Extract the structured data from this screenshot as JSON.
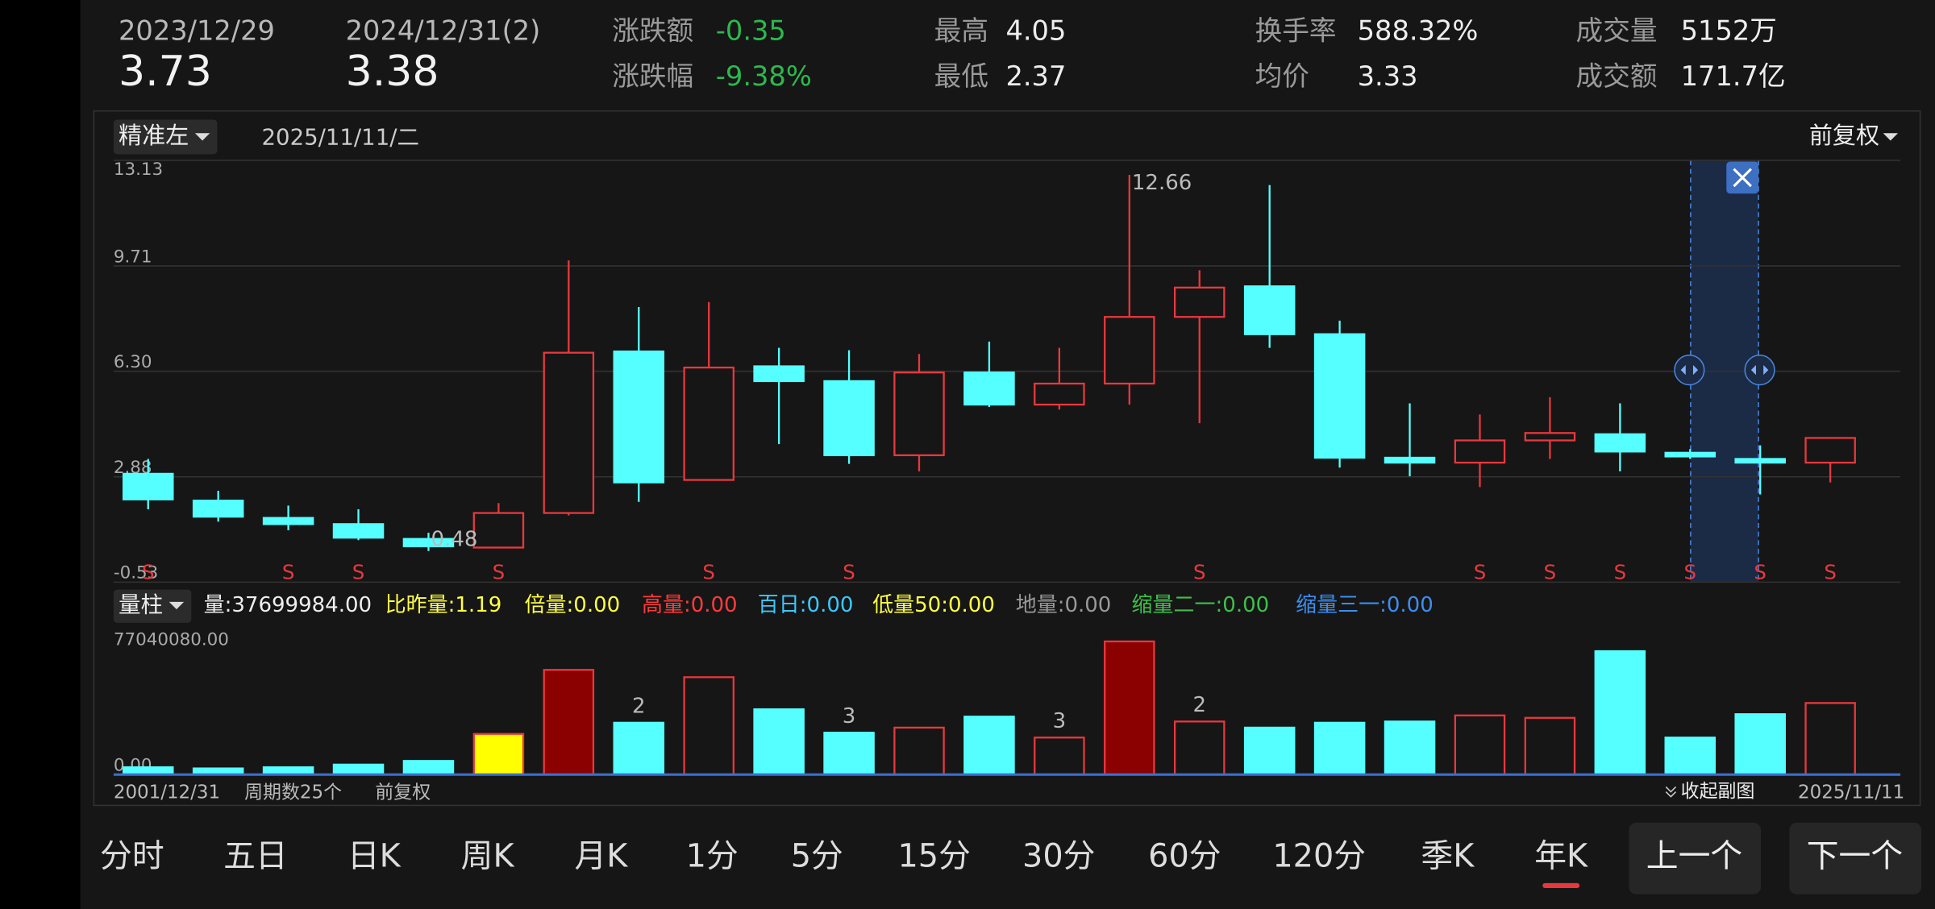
{
  "header": {
    "start": {
      "date": "2023/12/29",
      "price": "3.73"
    },
    "end": {
      "date": "2024/12/31(2)",
      "price": "3.38"
    },
    "fields": [
      {
        "label": "涨跌额",
        "value": "-0.35"
      },
      {
        "label": "涨跌幅",
        "value": "-9.38%"
      },
      {
        "label": "最高",
        "value": "4.05"
      },
      {
        "label": "最低",
        "value": "2.37"
      },
      {
        "label": "换手率",
        "value": "588.32%"
      },
      {
        "label": "均价",
        "value": "3.33"
      },
      {
        "label": "成交量",
        "value": "5152万"
      },
      {
        "label": "成交额",
        "value": "171.7亿"
      }
    ]
  },
  "chart_header": {
    "mode": "精准左",
    "date": "2025/11/11/二",
    "adjust": "前复权"
  },
  "chart_data": {
    "type": "candlestick",
    "open": [
      2.98,
      2.11,
      1.55,
      1.35,
      0.87,
      0.59,
      1.71,
      6.94,
      2.78,
      6.46,
      5.98,
      3.58,
      6.26,
      5.22,
      5.9,
      8.06,
      9.05,
      7.5,
      3.5,
      3.34,
      4.06,
      4.26,
      3.66,
      3.46,
      3.34
    ],
    "high": [
      3.46,
      2.43,
      1.95,
      1.83,
      1.07,
      2.03,
      9.89,
      8.38,
      8.54,
      7.06,
      6.98,
      6.86,
      7.26,
      7.06,
      12.66,
      9.57,
      12.33,
      7.94,
      5.26,
      4.9,
      5.46,
      5.26,
      3.78,
      3.9,
      4.14
    ],
    "low": [
      1.83,
      1.43,
      1.15,
      0.83,
      0.48,
      0.59,
      1.63,
      2.07,
      2.78,
      3.94,
      3.3,
      3.06,
      5.14,
      5.06,
      5.22,
      4.62,
      7.06,
      3.18,
      2.9,
      2.55,
      3.46,
      3.06,
      3.46,
      2.31,
      2.7
    ],
    "close": [
      2.15,
      1.59,
      1.35,
      0.91,
      0.63,
      1.71,
      6.9,
      2.7,
      6.42,
      5.98,
      3.58,
      6.26,
      5.22,
      5.9,
      8.06,
      9.01,
      7.5,
      3.5,
      3.34,
      4.06,
      4.3,
      3.7,
      3.54,
      3.34,
      4.14
    ],
    "up_color": "#e8383d",
    "down_color": "#55ffff",
    "ylim": [
      -0.53,
      13.13
    ],
    "yticks": [
      13.13,
      9.71,
      {
        "value": 6.3,
        "label": "6.30"
      },
      2.88,
      -0.53
    ],
    "grid": true,
    "signals": [
      "S",
      null,
      "S",
      "S",
      null,
      "S",
      null,
      null,
      "S",
      null,
      "S",
      null,
      null,
      null,
      null,
      "S",
      null,
      null,
      null,
      "S",
      "S",
      "S",
      "S",
      "S",
      "S"
    ],
    "annotations": [
      "high.14",
      "low.4"
    ],
    "volume": [
      4200000,
      3500000,
      4200000,
      5700000,
      7800000,
      23300000,
      60000000,
      29700000,
      55800000,
      37400000,
      24000000,
      26900000,
      33200000,
      21200000,
      76300000,
      30400000,
      26900000,
      29700000,
      30400000,
      33900000,
      32500000,
      70700000,
      21200000,
      34600000,
      41000000
    ],
    "volume_fill": [
      "#55ffff",
      "#55ffff",
      "#55ffff",
      "#55ffff",
      "#55ffff",
      "#ffff00",
      "#8b0000",
      "#55ffff",
      "none",
      "#55ffff",
      "#55ffff",
      "none",
      "#55ffff",
      "none",
      "#8b0000",
      "none",
      "#55ffff",
      "#55ffff",
      "#55ffff",
      "none",
      "none",
      "#55ffff",
      "#55ffff",
      "#55ffff",
      "none"
    ],
    "volume_labels": [
      null,
      null,
      null,
      null,
      null,
      null,
      null,
      2,
      null,
      null,
      3,
      null,
      null,
      3,
      null,
      2,
      null,
      null,
      null,
      null,
      null,
      null,
      null,
      null,
      null
    ],
    "vlim": [
      0,
      77040080
    ],
    "vticks": [
      {
        "value": 77040080,
        "label": "77040080.00"
      },
      {
        "value": 0,
        "label": "0.00"
      }
    ]
  },
  "indicator": {
    "name": "量柱",
    "items": [
      "量:37699984.00",
      "比昨量:1.19",
      "倍量:0.00",
      "高量:0.00",
      "百日:0.00",
      "低量50:0.00",
      "地量:0.00",
      "缩量二一:0.00",
      "缩量三一:0.00"
    ]
  },
  "footer": {
    "start": "2001/12/31",
    "periods": "周期数25个",
    "adjust": "前复权",
    "collapse": "收起副图",
    "end": "2025/11/11"
  },
  "tabs": [
    "分时",
    "五日",
    "日K",
    "周K",
    "月K",
    "1分",
    "5分",
    "15分",
    "30分",
    "60分",
    "120分",
    "季K",
    "年K"
  ],
  "selected_tab": "年K",
  "buttons": [
    "上一个",
    "下一个"
  ]
}
